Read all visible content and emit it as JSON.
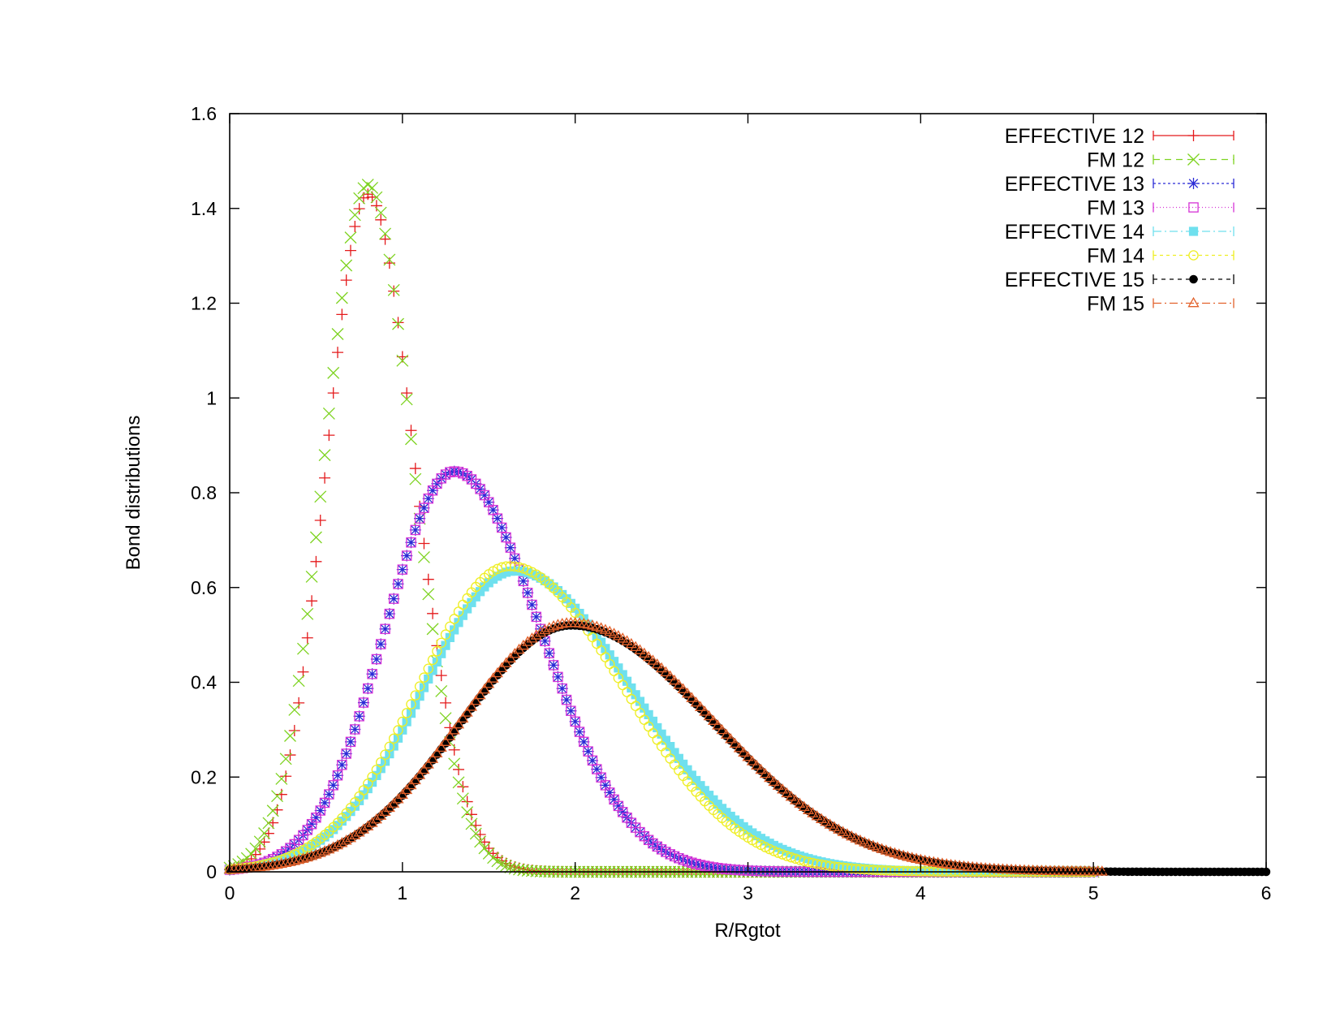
{
  "chart_data": {
    "type": "scatter",
    "xlabel": "R/Rgtot",
    "ylabel": "Bond distributions",
    "xlim": [
      0,
      6
    ],
    "ylim": [
      0,
      1.6
    ],
    "xticks": [
      "0",
      "1",
      "2",
      "3",
      "4",
      "5",
      "6"
    ],
    "yticks": [
      "0",
      "0.2",
      "0.4",
      "0.6",
      "0.8",
      "1",
      "1.2",
      "1.4",
      "1.6"
    ],
    "grid": false,
    "legend_position": "top-right",
    "series": [
      {
        "name": "EFFECTIVE 12",
        "color": "#e41a1c",
        "marker": "plus",
        "dash": "",
        "peak_x": 0.8,
        "peak_y": 1.43,
        "sigma_left": 0.24,
        "sigma_right": 0.27,
        "x_max": 5.0
      },
      {
        "name": "FM 12",
        "color": "#7ed321",
        "marker": "cross",
        "dash": "8,6",
        "peak_x": 0.8,
        "peak_y": 1.45,
        "sigma_left": 0.25,
        "sigma_right": 0.26,
        "x_max": 5.0
      },
      {
        "name": "EFFECTIVE 13",
        "color": "#2b2bd6",
        "marker": "asterisk",
        "dash": "3,3",
        "peak_x": 1.3,
        "peak_y": 0.845,
        "sigma_left": 0.4,
        "sigma_right": 0.5,
        "x_max": 5.0
      },
      {
        "name": "FM 13",
        "color": "#d633d6",
        "marker": "square-open",
        "dash": "1,3",
        "peak_x": 1.3,
        "peak_y": 0.845,
        "sigma_left": 0.4,
        "sigma_right": 0.5,
        "x_max": 5.0
      },
      {
        "name": "EFFECTIVE 14",
        "color": "#6fe0ee",
        "marker": "square-filled",
        "dash": "10,4,2,4",
        "peak_x": 1.65,
        "peak_y": 0.635,
        "sigma_left": 0.53,
        "sigma_right": 0.68,
        "x_max": 5.0
      },
      {
        "name": "FM 14",
        "color": "#eeee22",
        "marker": "circle-open",
        "dash": "4,4",
        "peak_x": 1.62,
        "peak_y": 0.645,
        "sigma_left": 0.52,
        "sigma_right": 0.66,
        "x_max": 5.0
      },
      {
        "name": "EFFECTIVE 15",
        "color": "#000000",
        "marker": "circle-filled",
        "dash": "5,5",
        "peak_x": 1.98,
        "peak_y": 0.52,
        "sigma_left": 0.64,
        "sigma_right": 0.82,
        "x_max": 6.0
      },
      {
        "name": "FM 15",
        "color": "#e2612b",
        "marker": "triangle-open",
        "dash": "10,4,2,4",
        "peak_x": 1.98,
        "peak_y": 0.525,
        "sigma_left": 0.64,
        "sigma_right": 0.82,
        "x_max": 5.05
      }
    ]
  }
}
